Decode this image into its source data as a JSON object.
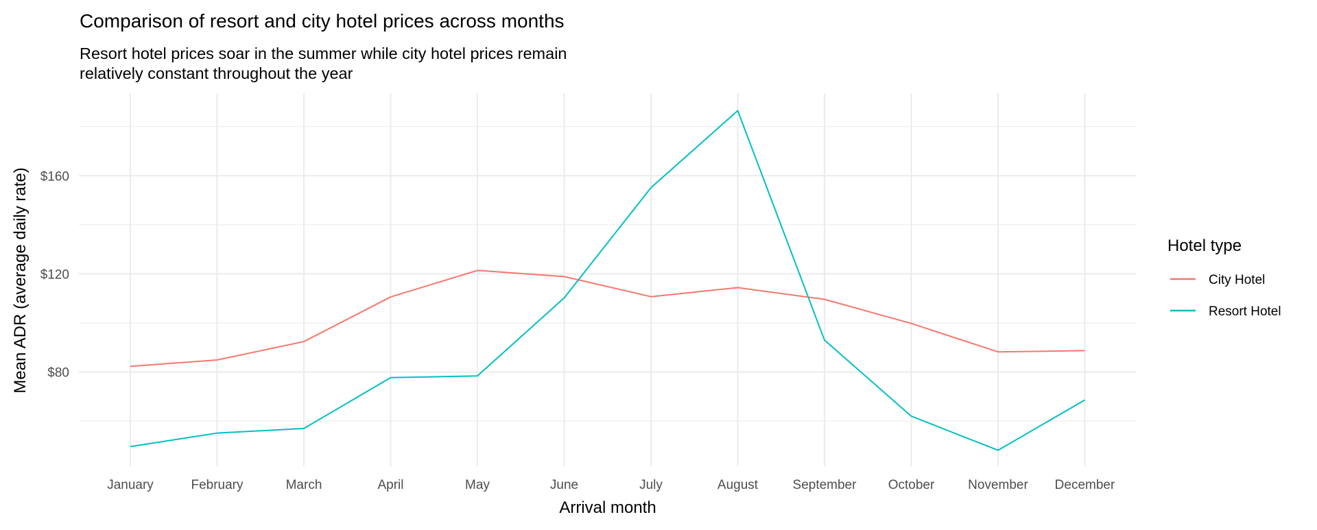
{
  "chart_data": {
    "type": "line",
    "title": "Comparison of resort and city hotel prices across months",
    "subtitle_lines": [
      "Resort hotel prices soar in the summer while city hotel prices remain",
      "relatively constant throughout the year"
    ],
    "xlabel": "Arrival month",
    "ylabel": "Mean ADR (average daily rate)",
    "categories": [
      "January",
      "February",
      "March",
      "April",
      "May",
      "June",
      "July",
      "August",
      "September",
      "October",
      "November",
      "December"
    ],
    "ylim": [
      41.6,
      193.6
    ],
    "yticks": [
      80,
      120,
      160
    ],
    "ytick_labels": [
      "$80",
      "$120",
      "$160"
    ],
    "grid": true,
    "legend": {
      "title": "Hotel type",
      "placement": "right"
    },
    "series": [
      {
        "name": "City Hotel",
        "color": "#F8766D",
        "values": [
          82.3,
          84.9,
          92.4,
          110.6,
          121.4,
          118.9,
          110.7,
          114.4,
          109.6,
          99.8,
          88.2,
          88.7
        ]
      },
      {
        "name": "Resort Hotel",
        "color": "#00BFC4",
        "values": [
          49.6,
          55.1,
          57.0,
          77.7,
          78.4,
          110.2,
          155.1,
          186.5,
          93.0,
          62.0,
          48.1,
          68.6
        ]
      }
    ]
  }
}
